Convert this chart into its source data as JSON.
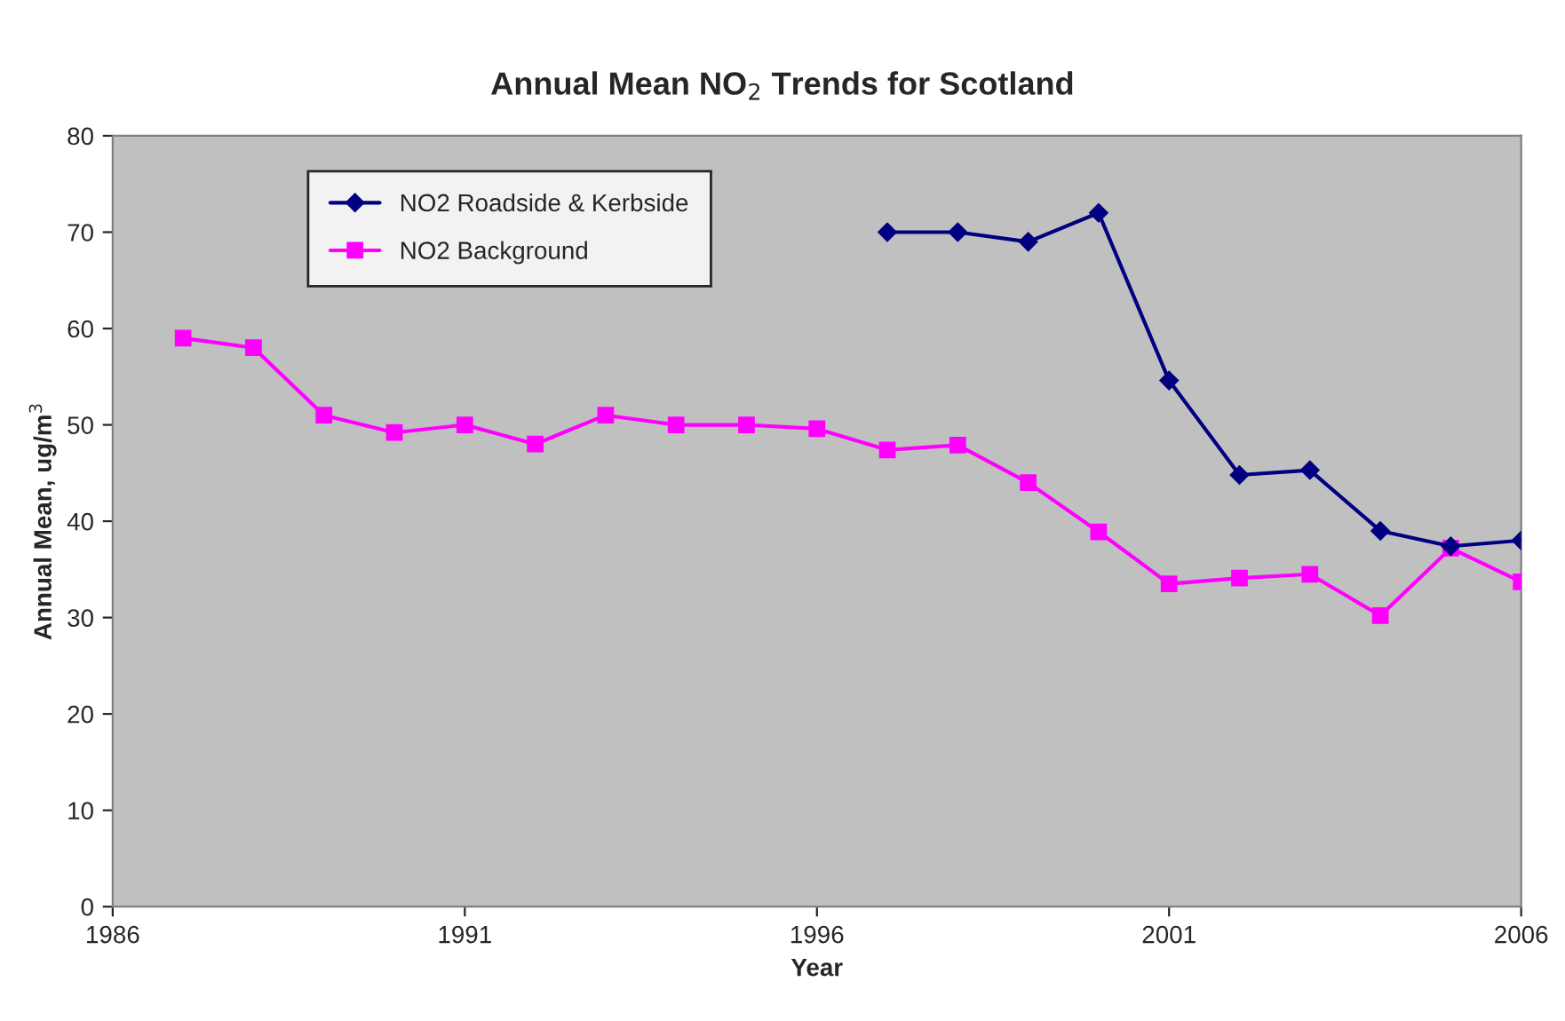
{
  "chart_data": {
    "type": "line",
    "title": "Annual Mean NO$_{2}$ Trends for Scotland",
    "xlabel": "Year",
    "ylabel": "Annual Mean, ug/m$^{3}$",
    "x": [
      1987,
      1988,
      1989,
      1990,
      1991,
      1992,
      1993,
      1994,
      1995,
      1996,
      1997,
      1998,
      1999,
      2000,
      2001,
      2002,
      2003,
      2004,
      2005,
      2006
    ],
    "series": [
      {
        "name": "NO2 Roadside & Kerbside",
        "color": "#000080",
        "marker": "diamond",
        "values": [
          null,
          null,
          null,
          null,
          null,
          null,
          null,
          null,
          null,
          null,
          70,
          70,
          69,
          72,
          54.6,
          44.8,
          45.3,
          39,
          37.4,
          38
        ]
      },
      {
        "name": "NO2 Background",
        "color": "#ff00ff",
        "marker": "square",
        "values": [
          59,
          58,
          51,
          49.2,
          50,
          48,
          51,
          50,
          50,
          49.6,
          47.4,
          47.9,
          44,
          38.9,
          33.5,
          34.1,
          34.5,
          30.2,
          37.2,
          33.7
        ]
      }
    ],
    "xlim": [
      1986,
      2006
    ],
    "xticks": [
      1986,
      1991,
      1996,
      2001,
      2006
    ],
    "ylim": [
      0,
      80
    ],
    "yticks": [
      0,
      10,
      20,
      30,
      40,
      50,
      60,
      70,
      80
    ],
    "grid": false,
    "legend": "top left",
    "line_style": "solid"
  }
}
